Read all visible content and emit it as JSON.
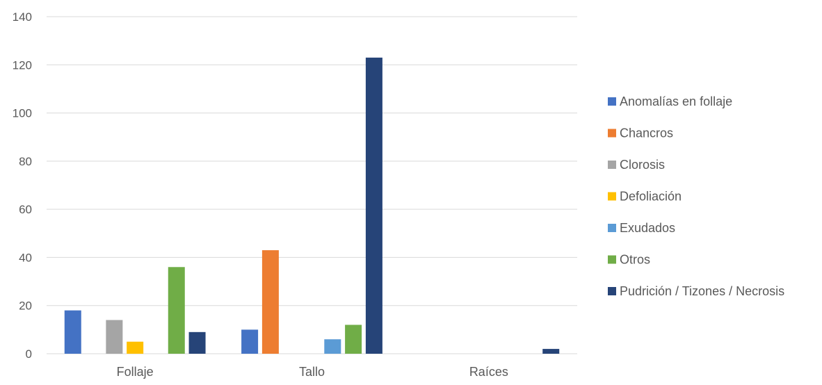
{
  "chart_data": {
    "type": "bar",
    "title": "",
    "xlabel": "",
    "ylabel": "",
    "categories": [
      "Follaje",
      "Tallo",
      "Raíces"
    ],
    "ylim": [
      0,
      140
    ],
    "yticks": [
      0,
      20,
      40,
      60,
      80,
      100,
      120,
      140
    ],
    "grid": true,
    "legend_position": "right",
    "series": [
      {
        "name": "Anomalías en follaje",
        "color": "#4472c4",
        "values": [
          18,
          10,
          0
        ]
      },
      {
        "name": "Chancros",
        "color": "#ed7d31",
        "values": [
          0,
          43,
          0
        ]
      },
      {
        "name": "Clorosis",
        "color": "#a5a5a5",
        "values": [
          14,
          0,
          0
        ]
      },
      {
        "name": "Defoliación",
        "color": "#ffc000",
        "values": [
          5,
          0,
          0
        ]
      },
      {
        "name": "Exudados",
        "color": "#5b9bd5",
        "values": [
          0,
          6,
          0
        ]
      },
      {
        "name": "Otros",
        "color": "#70ad47",
        "values": [
          36,
          12,
          0
        ]
      },
      {
        "name": "Pudrición / Tizones / Necrosis",
        "color": "#264478",
        "values": [
          9,
          123,
          2
        ]
      }
    ]
  }
}
